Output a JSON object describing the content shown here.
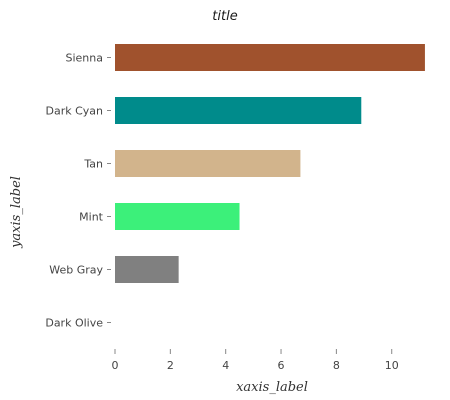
{
  "chart_data": {
    "type": "bar",
    "orientation": "horizontal",
    "title": "title",
    "xlabel": "xaxis_label",
    "ylabel": "yaxis_label",
    "categories": [
      "Dark Olive",
      "Web Gray",
      "Mint",
      "Tan",
      "Dark Cyan",
      "Sienna"
    ],
    "values": [
      0,
      2.3,
      4.5,
      6.7,
      8.9,
      11.2
    ],
    "colors": [
      "#556b2f",
      "#808080",
      "#3cf07a",
      "#d2b48c",
      "#008b8b",
      "#a0522d"
    ],
    "xlim": [
      0,
      11.6
    ],
    "xticks": [
      0,
      2,
      4,
      6,
      8,
      10
    ],
    "xtick_labels": [
      "0",
      "2",
      "4",
      "6",
      "8",
      "10"
    ],
    "grid": false,
    "legend": "none"
  }
}
